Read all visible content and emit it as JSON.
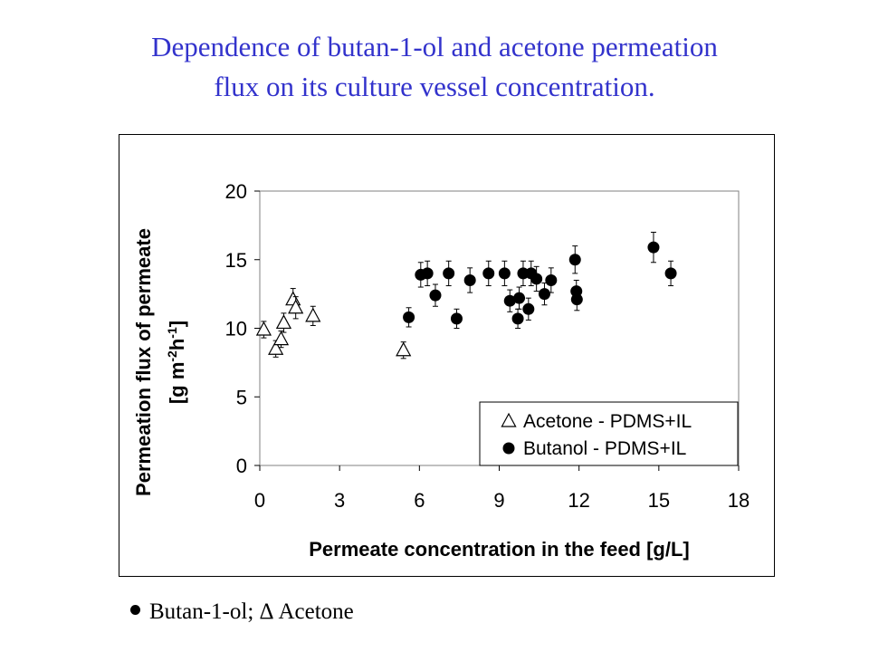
{
  "title": {
    "line1": "Dependence of butan-1-ol and acetone permeation",
    "line2": "flux on its culture vessel concentration."
  },
  "caption": {
    "text": "Butan-1-ol;  Δ Acetone"
  },
  "chart_data": {
    "type": "scatter",
    "title": "",
    "xlabel": "Permeate concentration in the feed [g/L]",
    "ylabel_line1": "Permeation flux of permeate",
    "ylabel_line2": "[g m-2h-1]",
    "xlim": [
      0,
      18
    ],
    "ylim": [
      0,
      20
    ],
    "xticks": [
      0,
      3,
      6,
      9,
      12,
      15,
      18
    ],
    "yticks": [
      0,
      5,
      10,
      15,
      20
    ],
    "grid": false,
    "legend_position": "bottom-right",
    "series": [
      {
        "name": "Acetone - PDMS+IL",
        "marker": "open-triangle",
        "points": [
          {
            "x": 0.15,
            "y": 9.9,
            "err": 0.6
          },
          {
            "x": 0.6,
            "y": 8.5,
            "err": 0.6
          },
          {
            "x": 0.8,
            "y": 9.2,
            "err": 0.6
          },
          {
            "x": 0.9,
            "y": 10.4,
            "err": 0.7
          },
          {
            "x": 1.25,
            "y": 12.1,
            "err": 0.8
          },
          {
            "x": 1.35,
            "y": 11.5,
            "err": 0.8
          },
          {
            "x": 2.0,
            "y": 10.9,
            "err": 0.7
          },
          {
            "x": 5.4,
            "y": 8.4,
            "err": 0.6
          }
        ]
      },
      {
        "name": "Butanol - PDMS+IL",
        "marker": "filled-circle",
        "points": [
          {
            "x": 5.6,
            "y": 10.8,
            "err": 0.7
          },
          {
            "x": 6.05,
            "y": 13.9,
            "err": 0.9
          },
          {
            "x": 6.3,
            "y": 14.0,
            "err": 0.9
          },
          {
            "x": 6.6,
            "y": 12.4,
            "err": 0.8
          },
          {
            "x": 7.1,
            "y": 14.0,
            "err": 0.9
          },
          {
            "x": 7.4,
            "y": 10.7,
            "err": 0.7
          },
          {
            "x": 7.9,
            "y": 13.5,
            "err": 0.9
          },
          {
            "x": 8.6,
            "y": 14.0,
            "err": 0.9
          },
          {
            "x": 9.2,
            "y": 14.0,
            "err": 0.9
          },
          {
            "x": 9.4,
            "y": 12.0,
            "err": 0.8
          },
          {
            "x": 9.7,
            "y": 10.7,
            "err": 0.7
          },
          {
            "x": 9.75,
            "y": 12.2,
            "err": 0.8
          },
          {
            "x": 9.9,
            "y": 14.0,
            "err": 0.9
          },
          {
            "x": 10.1,
            "y": 11.4,
            "err": 0.8
          },
          {
            "x": 10.2,
            "y": 14.0,
            "err": 0.9
          },
          {
            "x": 10.4,
            "y": 13.6,
            "err": 0.9
          },
          {
            "x": 10.7,
            "y": 12.5,
            "err": 0.8
          },
          {
            "x": 10.95,
            "y": 13.5,
            "err": 0.9
          },
          {
            "x": 11.85,
            "y": 15.0,
            "err": 1.0
          },
          {
            "x": 11.9,
            "y": 12.7,
            "err": 0.8
          },
          {
            "x": 11.92,
            "y": 12.1,
            "err": 0.8
          },
          {
            "x": 14.8,
            "y": 15.9,
            "err": 1.1
          },
          {
            "x": 15.45,
            "y": 14.0,
            "err": 0.9
          }
        ]
      }
    ]
  }
}
